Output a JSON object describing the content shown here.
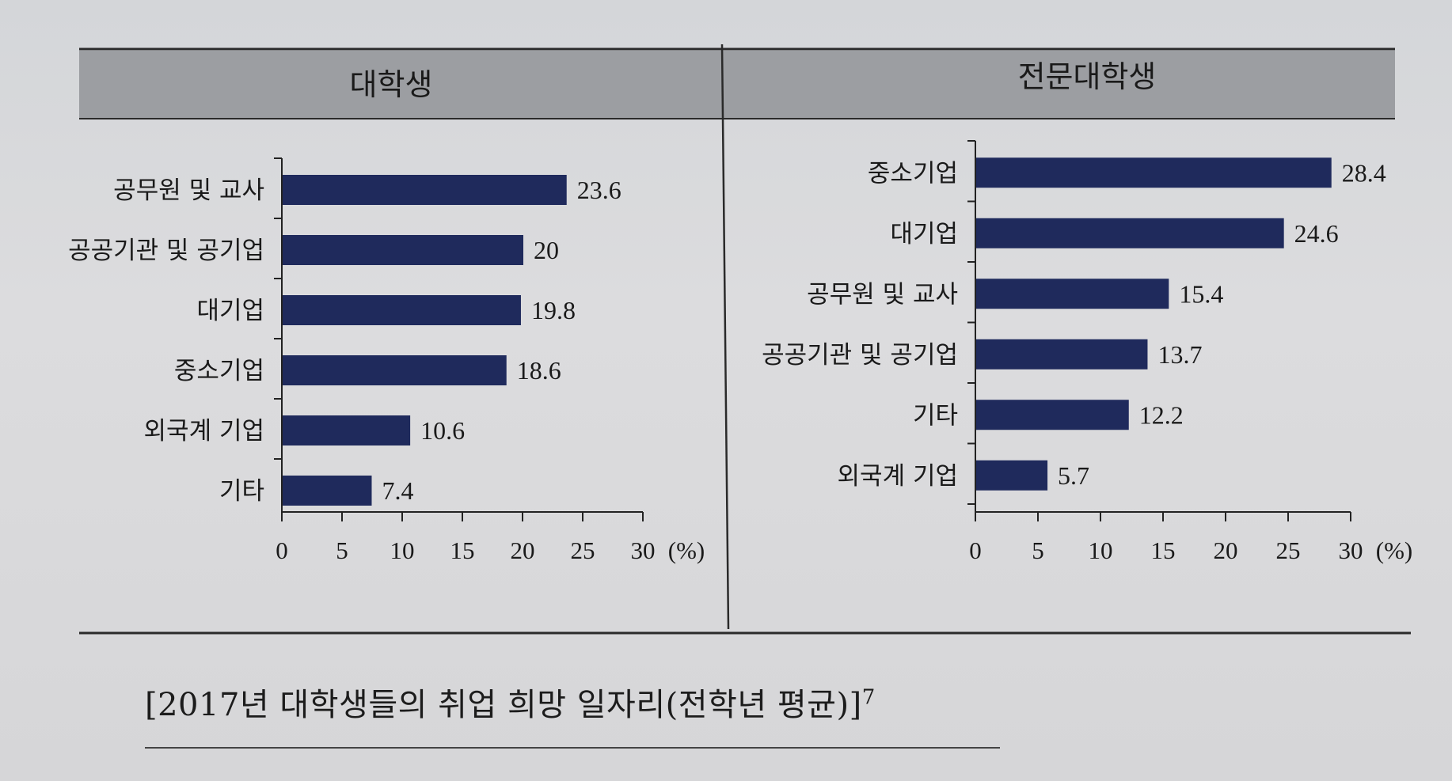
{
  "chart_data": [
    {
      "type": "bar",
      "orientation": "horizontal",
      "title": "대학생",
      "categories": [
        "공무원 및 교사",
        "공공기관 및 공기업",
        "대기업",
        "중소기업",
        "외국계 기업",
        "기타"
      ],
      "values": [
        23.6,
        20,
        19.8,
        18.6,
        10.6,
        7.4
      ],
      "value_labels": [
        "23.6",
        "20",
        "19.8",
        "18.6",
        "10.6",
        "7.4"
      ],
      "x_ticks": [
        "0",
        "5",
        "10",
        "15",
        "20",
        "25",
        "30"
      ],
      "unit": "(%)",
      "xlim": [
        0,
        30
      ],
      "bar_color": "#1f2a5c",
      "grid": false
    },
    {
      "type": "bar",
      "orientation": "horizontal",
      "title": "전문대학생",
      "categories": [
        "중소기업",
        "대기업",
        "공무원 및 교사",
        "공공기관 및 공기업",
        "기타",
        "외국계 기업"
      ],
      "values": [
        28.4,
        24.6,
        15.4,
        13.7,
        12.2,
        5.7
      ],
      "value_labels": [
        "28.4",
        "24.6",
        "15.4",
        "13.7",
        "12.2",
        "5.7"
      ],
      "x_ticks": [
        "0",
        "5",
        "10",
        "15",
        "20",
        "25",
        "30"
      ],
      "unit": "(%)",
      "xlim": [
        0,
        30
      ],
      "bar_color": "#1f2a5c",
      "grid": false
    }
  ],
  "caption": {
    "text": "[2017년 대학생들의 취업 희망 일자리(전학년 평균)]",
    "footnote": "7"
  },
  "colors": {
    "header_fill": "#9c9ea2",
    "bar": "#1f2a5c",
    "frame": "#2a2a2a"
  }
}
